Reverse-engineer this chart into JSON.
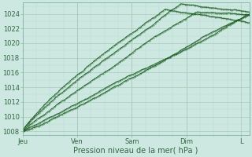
{
  "background_color": "#cce8e0",
  "plot_bg_color": "#cce8e0",
  "grid_color_major": "#aaccbb",
  "grid_color_minor": "#bbddd0",
  "line_color": "#1a5c20",
  "xlabel": "Pression niveau de la mer( hPa )",
  "ylim": [
    1007.5,
    1025.5
  ],
  "yticks": [
    1008,
    1010,
    1012,
    1014,
    1016,
    1018,
    1020,
    1022,
    1024
  ],
  "x_labels": [
    "Jeu",
    "Ven",
    "Sam",
    "Dim",
    "L"
  ],
  "x_tick_pos": [
    0,
    1,
    2,
    3,
    4
  ],
  "xlim": [
    0,
    4.15
  ],
  "num_points": 500,
  "figsize": [
    3.2,
    2.0
  ],
  "dpi": 100,
  "spine_color": "#88bbaa",
  "tick_color": "#336644",
  "label_fontsize": 7,
  "tick_fontsize": 6
}
